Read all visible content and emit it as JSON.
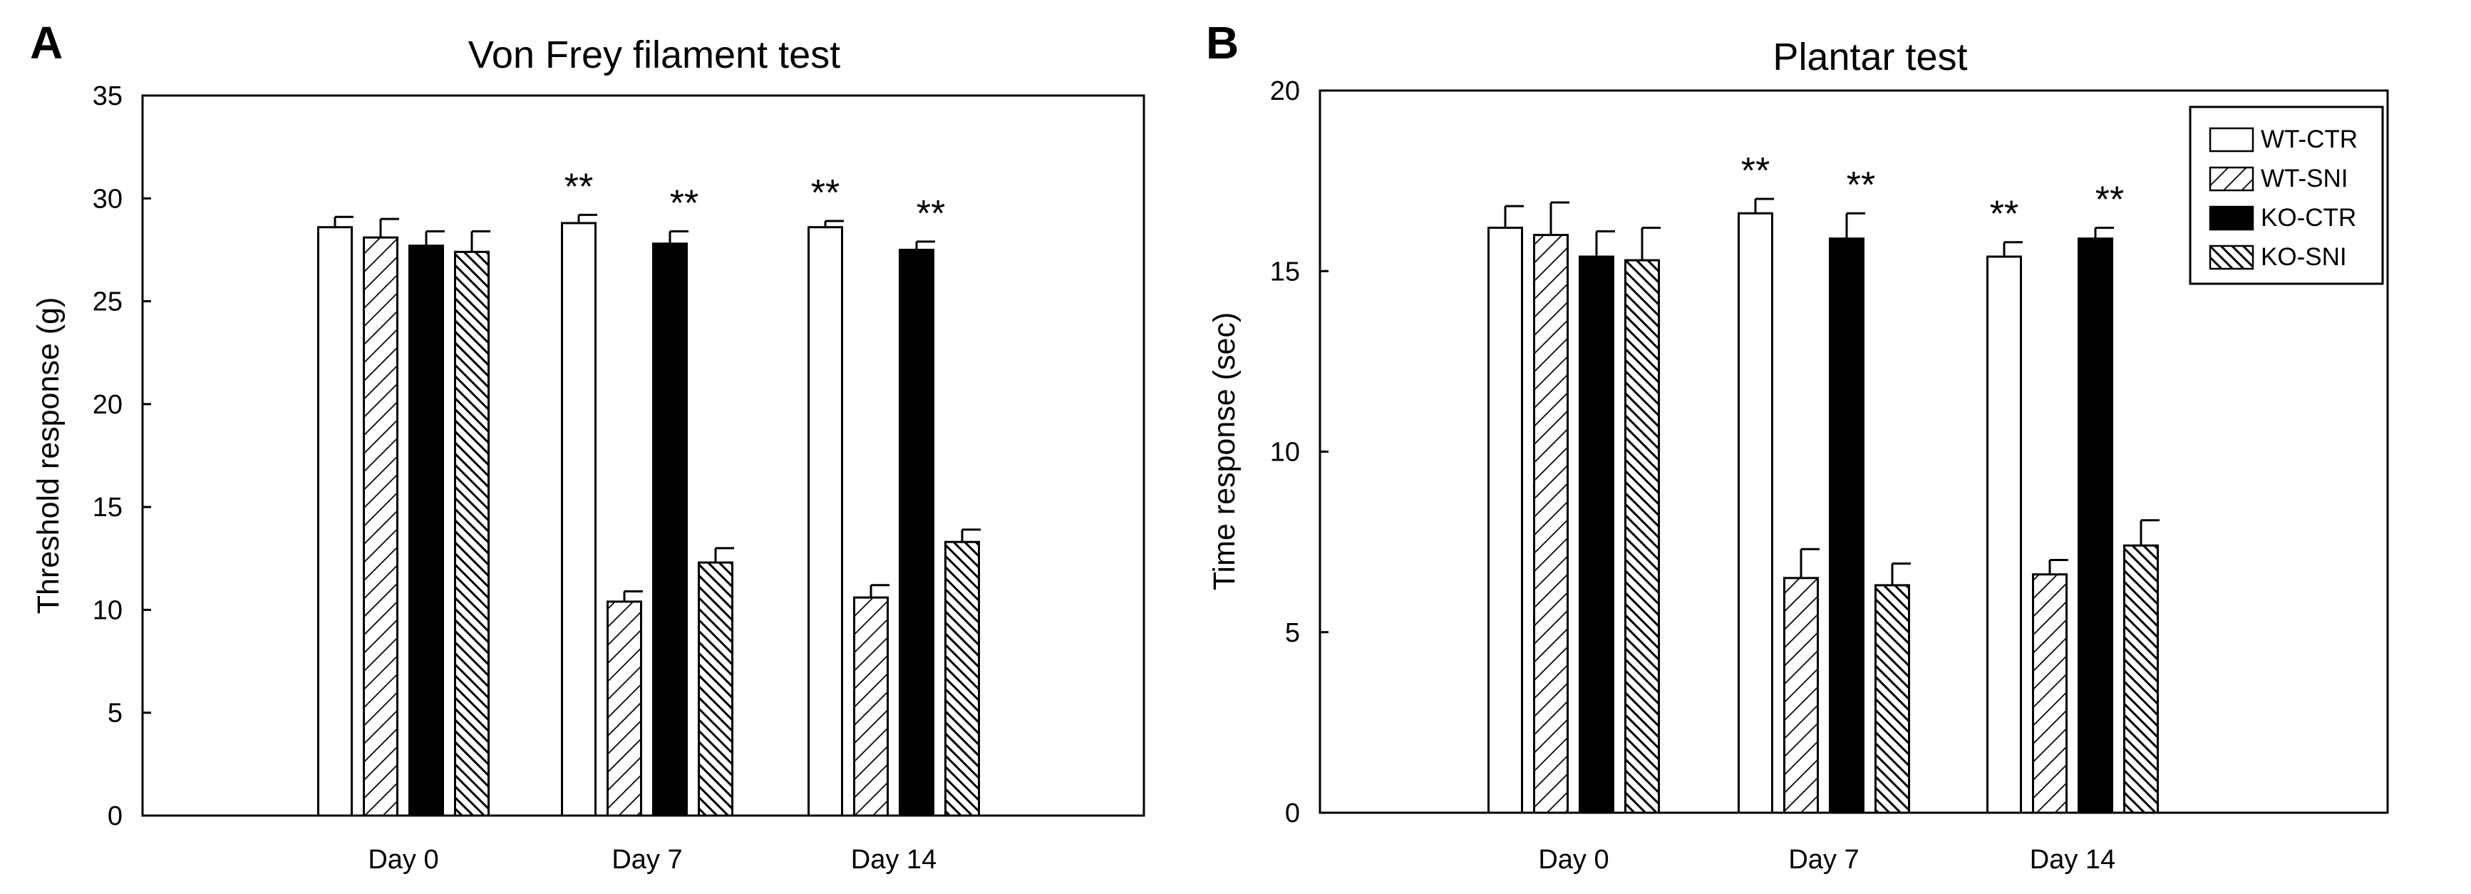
{
  "series_styles": [
    {
      "name": "WT-CTR",
      "fill": "#ffffff",
      "pattern": "none"
    },
    {
      "name": "WT-SNI",
      "fill": "#ffffff",
      "pattern": "sparse-diagonal"
    },
    {
      "name": "KO-CTR",
      "fill": "#000000",
      "pattern": "none"
    },
    {
      "name": "KO-SNI",
      "fill": "#ffffff",
      "pattern": "dense-diagonal"
    }
  ],
  "chart_data": [
    {
      "panel": "A",
      "type": "bar",
      "title": "Von Frey filament test",
      "xlabel": "",
      "ylabel": "Threshold response (g)",
      "ylim": [
        0,
        35
      ],
      "yticks": [
        "0",
        "5",
        "10",
        "15",
        "20",
        "25",
        "30",
        "35"
      ],
      "categories": [
        "Day 0",
        "Day 7",
        "Day 14"
      ],
      "series": [
        {
          "name": "WT-CTR",
          "values": [
            28.6,
            28.8,
            28.6
          ],
          "errors": [
            0.5,
            0.4,
            0.3
          ]
        },
        {
          "name": "WT-SNI",
          "values": [
            28.1,
            10.4,
            10.6
          ],
          "errors": [
            0.9,
            0.5,
            0.6
          ]
        },
        {
          "name": "KO-CTR",
          "values": [
            27.7,
            27.8,
            27.5
          ],
          "errors": [
            0.7,
            0.6,
            0.4
          ]
        },
        {
          "name": "KO-SNI",
          "values": [
            27.4,
            12.3,
            13.3
          ],
          "errors": [
            1.0,
            0.7,
            0.6
          ]
        }
      ],
      "significance": [
        {
          "category": 1,
          "series": 0,
          "label": "**"
        },
        {
          "category": 1,
          "series": 2,
          "label": "**"
        },
        {
          "category": 2,
          "series": 0,
          "label": "**"
        },
        {
          "category": 2,
          "series": 2,
          "label": "**"
        }
      ],
      "legend": false
    },
    {
      "panel": "B",
      "type": "bar",
      "title": "Plantar test",
      "xlabel": "",
      "ylabel": "Time response (sec)",
      "ylim": [
        0,
        20
      ],
      "yticks": [
        "0",
        "5",
        "10",
        "15",
        "20"
      ],
      "categories": [
        "Day 0",
        "Day 7",
        "Day 14"
      ],
      "series": [
        {
          "name": "WT-CTR",
          "values": [
            16.2,
            16.6,
            15.4
          ],
          "errors": [
            0.6,
            0.4,
            0.4
          ]
        },
        {
          "name": "WT-SNI",
          "values": [
            16.0,
            6.5,
            6.6
          ],
          "errors": [
            0.9,
            0.8,
            0.4
          ]
        },
        {
          "name": "KO-CTR",
          "values": [
            15.4,
            15.9,
            15.9
          ],
          "errors": [
            0.7,
            0.7,
            0.3
          ]
        },
        {
          "name": "KO-SNI",
          "values": [
            15.3,
            6.3,
            7.4
          ],
          "errors": [
            0.9,
            0.6,
            0.7
          ]
        }
      ],
      "significance": [
        {
          "category": 1,
          "series": 0,
          "label": "**"
        },
        {
          "category": 1,
          "series": 2,
          "label": "**"
        },
        {
          "category": 2,
          "series": 0,
          "label": "**"
        },
        {
          "category": 2,
          "series": 2,
          "label": "**"
        }
      ],
      "legend": true,
      "legend_position": "top-right"
    }
  ]
}
